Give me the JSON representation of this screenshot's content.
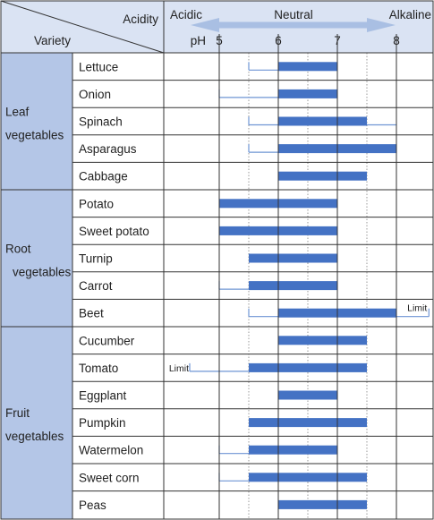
{
  "chart_data": {
    "type": "range-bar",
    "header": {
      "corner_top": "Acidity",
      "corner_bottom": "Variety",
      "acidic": "Acidic",
      "neutral": "Neutral",
      "alkaline": "Alkaline",
      "ph_label": "pH"
    },
    "x_ticks": [
      {
        "value": 5,
        "label": "5"
      },
      {
        "value": 6,
        "label": "6"
      },
      {
        "value": 7,
        "label": "7"
      },
      {
        "value": 8,
        "label": "8"
      }
    ],
    "xlim": [
      4.0,
      8.6
    ],
    "limit_label": "Limit",
    "groups": [
      {
        "name_lines": [
          "Leaf",
          "vegetables"
        ],
        "items": [
          {
            "name": "Lettuce",
            "optimal": [
              6.0,
              7.0
            ],
            "limit": [
              5.5,
              7.0
            ]
          },
          {
            "name": "Onion",
            "optimal": [
              6.0,
              7.0
            ],
            "limit": [
              5.0,
              7.0
            ]
          },
          {
            "name": "Spinach",
            "optimal": [
              6.0,
              7.5
            ],
            "limit": [
              5.5,
              8.0
            ]
          },
          {
            "name": "Asparagus",
            "optimal": [
              6.0,
              8.0
            ],
            "limit": [
              5.5,
              8.0
            ]
          },
          {
            "name": "Cabbage",
            "optimal": [
              6.0,
              7.5
            ],
            "limit": null
          }
        ]
      },
      {
        "name_lines": [
          "Root",
          "vegetables"
        ],
        "items": [
          {
            "name": "Potato",
            "optimal": [
              5.0,
              7.0
            ],
            "limit": null
          },
          {
            "name": "Sweet potato",
            "optimal": [
              5.0,
              7.0
            ],
            "limit": null
          },
          {
            "name": "Turnip",
            "optimal": [
              5.5,
              7.0
            ],
            "limit": null
          },
          {
            "name": "Carrot",
            "optimal": [
              5.5,
              7.0
            ],
            "limit": [
              5.0,
              7.0
            ]
          },
          {
            "name": "Beet",
            "optimal": [
              6.0,
              8.0
            ],
            "limit": [
              5.5,
              8.55
            ],
            "limit_label_side": "right"
          }
        ]
      },
      {
        "name_lines": [
          "Fruit",
          "vegetables"
        ],
        "items": [
          {
            "name": "Cucumber",
            "optimal": [
              6.0,
              7.5
            ],
            "limit": null
          },
          {
            "name": "Tomato",
            "optimal": [
              5.5,
              7.5
            ],
            "limit": [
              4.5,
              7.5
            ],
            "limit_label_side": "left"
          },
          {
            "name": "Eggplant",
            "optimal": [
              6.0,
              7.0
            ],
            "limit": null
          },
          {
            "name": "Pumpkin",
            "optimal": [
              5.5,
              7.5
            ],
            "limit": null
          },
          {
            "name": "Watermelon",
            "optimal": [
              5.5,
              7.0
            ],
            "limit": [
              5.0,
              7.0
            ]
          },
          {
            "name": "Sweet corn",
            "optimal": [
              5.5,
              7.5
            ],
            "limit": [
              5.0,
              7.5
            ]
          },
          {
            "name": "Peas",
            "optimal": [
              6.0,
              7.5
            ],
            "limit": null
          }
        ]
      }
    ],
    "colors": {
      "group_fill": "#b4c6e7",
      "header_fill": "#dae3f3",
      "bar": "#4472c4",
      "limit_line": "#6f95d4",
      "arrow": "#a9bfe3",
      "dotted": "#9a9a9a"
    }
  }
}
